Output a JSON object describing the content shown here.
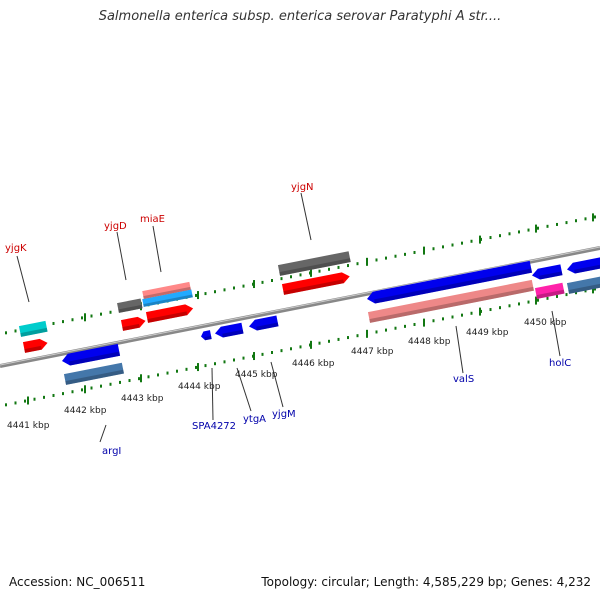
{
  "title": "Salmonella enterica subsp. enterica serovar Paratyphi A str....",
  "footer": {
    "accession": "Accession: NC_006511",
    "summary": "Topology: circular; Length: 4,585,229 bp; Genes: 4,232"
  },
  "colors": {
    "forward_label": "#cc0000",
    "reverse_label": "#0000aa",
    "backbone": "#888888",
    "tick": "#117711"
  },
  "scale_labels": [
    "4441 kbp",
    "4442 kbp",
    "4443 kbp",
    "4444 kbp",
    "4445 kbp",
    "4446 kbp",
    "4447 kbp",
    "4448 kbp",
    "4449 kbp",
    "4450 kbp"
  ],
  "gene_labels": {
    "forward": [
      "yjgK",
      "yjgD",
      "miaE",
      "yjgN"
    ],
    "reverse": [
      "argI",
      "SPA4272",
      "ytgA",
      "yjgM",
      "valS",
      "holC"
    ]
  },
  "features": [
    {
      "strand": "forward",
      "color": "#ff0000",
      "shape": "arrow",
      "dir": "right"
    },
    {
      "strand": "forward",
      "color": "#00cccc",
      "shape": "box"
    },
    {
      "strand": "forward",
      "color": "#ff0000",
      "shape": "arrow",
      "dir": "right"
    },
    {
      "strand": "forward",
      "color": "#ff0000",
      "shape": "arrow",
      "dir": "right"
    },
    {
      "strand": "forward",
      "color": "#666666",
      "shape": "box"
    },
    {
      "strand": "forward",
      "color": "#22aaff",
      "shape": "box"
    },
    {
      "strand": "forward",
      "color": "#ff8888",
      "shape": "box"
    },
    {
      "strand": "forward",
      "color": "#ff0000",
      "shape": "arrow",
      "dir": "right"
    },
    {
      "strand": "forward",
      "color": "#666666",
      "shape": "box"
    },
    {
      "strand": "reverse",
      "color": "#0000ee",
      "shape": "arrow",
      "dir": "left"
    },
    {
      "strand": "reverse",
      "color": "#4477aa",
      "shape": "box"
    },
    {
      "strand": "reverse",
      "color": "#0000ee",
      "shape": "arrow",
      "dir": "left"
    },
    {
      "strand": "reverse",
      "color": "#0000ee",
      "shape": "arrow",
      "dir": "left"
    },
    {
      "strand": "reverse",
      "color": "#0000ee",
      "shape": "arrow",
      "dir": "left"
    },
    {
      "strand": "reverse",
      "color": "#0000ee",
      "shape": "arrow",
      "dir": "left"
    },
    {
      "strand": "reverse",
      "color": "#ee8888",
      "shape": "box"
    },
    {
      "strand": "reverse",
      "color": "#ff22aa",
      "shape": "box"
    },
    {
      "strand": "reverse",
      "color": "#0000ee",
      "shape": "arrow",
      "dir": "left"
    },
    {
      "strand": "reverse",
      "color": "#0000ee",
      "shape": "arrow",
      "dir": "left"
    },
    {
      "strand": "reverse",
      "color": "#4477aa",
      "shape": "box"
    }
  ]
}
